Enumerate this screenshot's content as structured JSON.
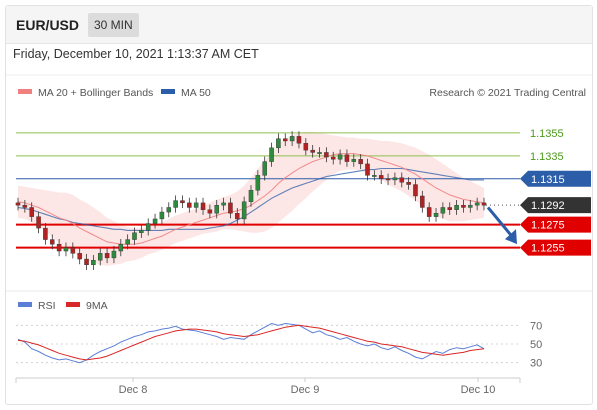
{
  "header": {
    "symbol": "EUR/USD",
    "timeframe": "30 MIN"
  },
  "datetime": "Friday, December 10, 2021 1:13:37 AM CET",
  "legend": {
    "ma20": "MA 20 + Bollinger Bands",
    "ma50": "MA 50",
    "credit": "Research © 2021 Trading Central",
    "rsi": "RSI",
    "ma9": "9MA"
  },
  "colors": {
    "ma20": "#f08080",
    "ma50": "#2c5da8",
    "bands": "#fde3e3",
    "resistance": "#8cc04b",
    "pivot": "#2c5da8",
    "support": "#e00000",
    "candle_up": "#2e8b3d",
    "candle_down": "#b22222",
    "rsi": "#5b7fd6",
    "ma9": "#d92626",
    "current": "#333333"
  },
  "chart_data": [
    {
      "type": "candlestick",
      "title": "",
      "x_ticks": [
        "Dec 8",
        "Dec 9",
        "Dec 10"
      ],
      "ylim": [
        1.1225,
        1.1375
      ],
      "levels": [
        {
          "label": "1.1355",
          "value": 1.1355,
          "kind": "resistance"
        },
        {
          "label": "1.1335",
          "value": 1.1335,
          "kind": "resistance"
        },
        {
          "label": "1.1315",
          "value": 1.1315,
          "kind": "pivot"
        },
        {
          "label": "1.1292",
          "value": 1.1292,
          "kind": "current"
        },
        {
          "label": "1.1275",
          "value": 1.1275,
          "kind": "support"
        },
        {
          "label": "1.1255",
          "value": 1.1255,
          "kind": "support"
        }
      ],
      "close": [
        1.1292,
        1.129,
        1.1282,
        1.1272,
        1.1262,
        1.1258,
        1.1252,
        1.1255,
        1.125,
        1.1245,
        1.124,
        1.1244,
        1.125,
        1.1246,
        1.1252,
        1.1258,
        1.1262,
        1.1268,
        1.127,
        1.1276,
        1.128,
        1.1286,
        1.129,
        1.1296,
        1.1294,
        1.129,
        1.1294,
        1.1288,
        1.1285,
        1.1292,
        1.1294,
        1.1285,
        1.128,
        1.1295,
        1.1305,
        1.1318,
        1.133,
        1.1342,
        1.135,
        1.1348,
        1.1352,
        1.1346,
        1.134,
        1.1338,
        1.1338,
        1.1334,
        1.1332,
        1.1336,
        1.133,
        1.1332,
        1.1328,
        1.1318,
        1.1318,
        1.1315,
        1.1314,
        1.1316,
        1.1312,
        1.131,
        1.13,
        1.129,
        1.1282,
        1.1285,
        1.129,
        1.1288,
        1.1292,
        1.129,
        1.1292,
        1.1294,
        1.1292
      ],
      "ma20": [
        1.1295,
        1.1294,
        1.1292,
        1.129,
        1.1287,
        1.1284,
        1.1281,
        1.1279,
        1.1276,
        1.1272,
        1.1269,
        1.1266,
        1.1263,
        1.126,
        1.1259,
        1.1258,
        1.1258,
        1.1258,
        1.1259,
        1.1261,
        1.1263,
        1.1265,
        1.1268,
        1.1271,
        1.1273,
        1.1275,
        1.1277,
        1.1279,
        1.1281,
        1.1283,
        1.1285,
        1.1286,
        1.1287,
        1.1289,
        1.1292,
        1.1296,
        1.13,
        1.1305,
        1.1311,
        1.1316,
        1.132,
        1.1324,
        1.1327,
        1.133,
        1.1332,
        1.1334,
        1.1336,
        1.1337,
        1.1337,
        1.1337,
        1.1336,
        1.1335,
        1.1333,
        1.1331,
        1.1329,
        1.1327,
        1.1325,
        1.1322,
        1.1319,
        1.1315,
        1.1311,
        1.1307,
        1.1304,
        1.1301,
        1.1299,
        1.1297,
        1.1296,
        1.1295,
        1.1294
      ],
      "band_width": [
        0.0014,
        0.0014,
        0.0015,
        0.0016,
        0.0018,
        0.002,
        0.0022,
        0.0024,
        0.0025,
        0.0025,
        0.0025,
        0.0024,
        0.0023,
        0.0021,
        0.0019,
        0.0017,
        0.0015,
        0.0014,
        0.0013,
        0.0012,
        0.0012,
        0.0012,
        0.0012,
        0.0012,
        0.0012,
        0.0012,
        0.0012,
        0.0012,
        0.0013,
        0.0014,
        0.0014,
        0.0015,
        0.0017,
        0.002,
        0.0024,
        0.0028,
        0.0031,
        0.0033,
        0.0034,
        0.0034,
        0.0033,
        0.0031,
        0.0029,
        0.0026,
        0.0023,
        0.002,
        0.0017,
        0.0015,
        0.0014,
        0.0014,
        0.0014,
        0.0015,
        0.0016,
        0.0017,
        0.0019,
        0.002,
        0.0021,
        0.0022,
        0.0023,
        0.0024,
        0.0025,
        0.0025,
        0.0024,
        0.0023,
        0.0021,
        0.0019,
        0.0017,
        0.0015,
        0.0013
      ],
      "ma50": [
        1.129,
        1.1289,
        1.1288,
        1.1286,
        1.1284,
        1.1282,
        1.128,
        1.1279,
        1.1277,
        1.1276,
        1.1275,
        1.1274,
        1.1273,
        1.1272,
        1.1271,
        1.1271,
        1.127,
        1.127,
        1.127,
        1.127,
        1.127,
        1.127,
        1.1271,
        1.1271,
        1.1271,
        1.1271,
        1.1271,
        1.1271,
        1.1272,
        1.1273,
        1.1274,
        1.1276,
        1.1279,
        1.1282,
        1.1286,
        1.129,
        1.1294,
        1.1298,
        1.1301,
        1.1304,
        1.1307,
        1.1309,
        1.1311,
        1.1313,
        1.1315,
        1.1317,
        1.1318,
        1.1319,
        1.132,
        1.1321,
        1.1322,
        1.1323,
        1.1323,
        1.1324,
        1.1324,
        1.1324,
        1.1324,
        1.1323,
        1.1322,
        1.1321,
        1.132,
        1.1319,
        1.1318,
        1.1317,
        1.1316,
        1.1315,
        1.1314,
        1.1314,
        1.1314
      ],
      "projection": {
        "from": 1.129,
        "to": 1.1258
      }
    },
    {
      "type": "line",
      "title": "",
      "ylim": [
        20,
        80
      ],
      "y_ticks": [
        70,
        50,
        30
      ],
      "series": [
        {
          "name": "RSI",
          "values": [
            55,
            52,
            45,
            42,
            38,
            35,
            33,
            34,
            32,
            30,
            33,
            38,
            42,
            45,
            48,
            52,
            55,
            58,
            60,
            63,
            64,
            66,
            67,
            69,
            66,
            65,
            64,
            62,
            60,
            58,
            55,
            57,
            56,
            55,
            60,
            64,
            68,
            72,
            70,
            72,
            71,
            70,
            66,
            62,
            64,
            60,
            58,
            55,
            57,
            53,
            50,
            48,
            50,
            46,
            44,
            47,
            43,
            40,
            36,
            34,
            38,
            42,
            40,
            44,
            46,
            45,
            47,
            49,
            45
          ]
        },
        {
          "name": "9MA",
          "values": [
            54,
            53,
            51,
            49,
            46,
            43,
            40,
            38,
            36,
            34,
            33,
            34,
            35,
            37,
            40,
            43,
            46,
            49,
            52,
            55,
            58,
            60,
            62,
            64,
            65,
            66,
            66,
            65,
            64,
            63,
            61,
            60,
            59,
            58,
            59,
            60,
            62,
            64,
            66,
            68,
            69,
            70,
            69,
            68,
            67,
            65,
            63,
            61,
            59,
            57,
            55,
            53,
            52,
            50,
            49,
            48,
            47,
            45,
            43,
            41,
            40,
            39,
            38,
            39,
            40,
            41,
            43,
            44,
            45
          ]
        }
      ]
    }
  ]
}
